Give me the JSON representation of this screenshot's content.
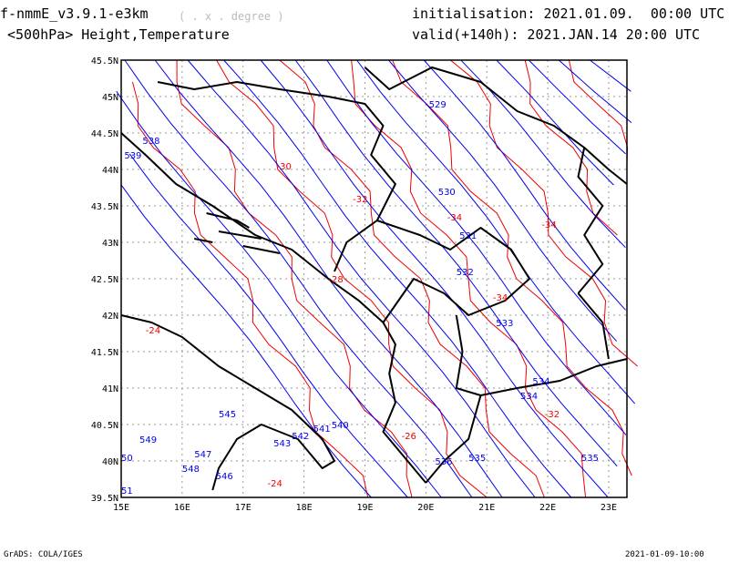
{
  "header": {
    "model": "f-nmmE_v3.9.1-e3km",
    "units": "( . x . degree )",
    "level": "<500hPa> Height,Temperature",
    "init": "initialisation: 2021.01.09.  00:00 UTC",
    "valid": "valid(+140h): 2021.JAN.14 20:00 UTC"
  },
  "footer": {
    "left": "GrADS: COLA/IGES",
    "right": "2021-01-09-10:00"
  },
  "map": {
    "lon_range": [
      15,
      23.3
    ],
    "lat_range": [
      39.5,
      45.5
    ],
    "lon_ticks": [
      "15E",
      "16E",
      "17E",
      "18E",
      "19E",
      "20E",
      "21E",
      "22E",
      "23E"
    ],
    "lat_ticks": [
      "39.5N",
      "40N",
      "40.5N",
      "41N",
      "41.5N",
      "42N",
      "42.5N",
      "43N",
      "43.5N",
      "44N",
      "44.5N",
      "45N",
      "45.5N"
    ],
    "colors": {
      "height": "#0000ee",
      "temperature": "#ee0000",
      "border": "#000000",
      "grid": "#999999"
    },
    "height_labels": [
      {
        "text": "529",
        "lon": 20.05,
        "lat": 44.85
      },
      {
        "text": "530",
        "lon": 20.2,
        "lat": 43.65
      },
      {
        "text": "531",
        "lon": 20.55,
        "lat": 43.05
      },
      {
        "text": "532",
        "lon": 20.5,
        "lat": 42.55
      },
      {
        "text": "533",
        "lon": 21.15,
        "lat": 41.85
      },
      {
        "text": "534",
        "lon": 21.75,
        "lat": 41.05
      },
      {
        "text": "534",
        "lon": 21.55,
        "lat": 40.85
      },
      {
        "text": "535",
        "lon": 22.55,
        "lat": 40.0
      },
      {
        "text": "535",
        "lon": 20.7,
        "lat": 40.0
      },
      {
        "text": "536",
        "lon": 20.15,
        "lat": 39.95
      },
      {
        "text": "538",
        "lon": 15.35,
        "lat": 44.35
      },
      {
        "text": "539",
        "lon": 15.05,
        "lat": 44.15
      },
      {
        "text": "540",
        "lon": 18.45,
        "lat": 40.45
      },
      {
        "text": "541",
        "lon": 18.15,
        "lat": 40.4
      },
      {
        "text": "542",
        "lon": 17.8,
        "lat": 40.3
      },
      {
        "text": "543",
        "lon": 17.5,
        "lat": 40.2
      },
      {
        "text": "545",
        "lon": 16.6,
        "lat": 40.6
      },
      {
        "text": "546",
        "lon": 16.55,
        "lat": 39.75
      },
      {
        "text": "547",
        "lon": 16.2,
        "lat": 40.05
      },
      {
        "text": "548",
        "lon": 16.0,
        "lat": 39.85
      },
      {
        "text": "549",
        "lon": 15.3,
        "lat": 40.25
      },
      {
        "text": "50",
        "lon": 15.0,
        "lat": 40.0
      },
      {
        "text": "51",
        "lon": 15.0,
        "lat": 39.55
      }
    ],
    "temp_labels": [
      {
        "text": "-30",
        "lon": 17.55,
        "lat": 44.0
      },
      {
        "text": "-32",
        "lon": 18.8,
        "lat": 43.55
      },
      {
        "text": "-34",
        "lon": 20.35,
        "lat": 43.3
      },
      {
        "text": "-34",
        "lon": 21.9,
        "lat": 43.2
      },
      {
        "text": "-34",
        "lon": 21.1,
        "lat": 42.2
      },
      {
        "text": "-28",
        "lon": 18.4,
        "lat": 42.45
      },
      {
        "text": "-24",
        "lon": 15.4,
        "lat": 41.75
      },
      {
        "text": "-26",
        "lon": 19.6,
        "lat": 40.3
      },
      {
        "text": "-24",
        "lon": 17.4,
        "lat": 39.65
      },
      {
        "text": "-32",
        "lon": 21.95,
        "lat": 40.6
      }
    ]
  }
}
